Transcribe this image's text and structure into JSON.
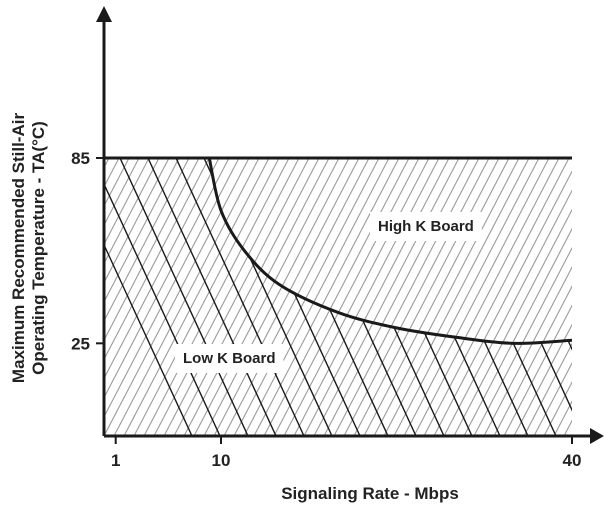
{
  "chart_data": {
    "type": "area",
    "xlabel": "Signaling Rate - Mbps",
    "ylabel_line1": "Maximum Recommended Still-Air",
    "ylabel_line2": "Operating Temperature  - TA(°C)",
    "x_ticks": [
      {
        "value": 1,
        "label": "1"
      },
      {
        "value": 10,
        "label": "10"
      },
      {
        "value": 40,
        "label": "40"
      }
    ],
    "y_ticks": [
      {
        "value": 25,
        "label": "25"
      },
      {
        "value": 85,
        "label": "85"
      }
    ],
    "xlim": [
      0,
      40
    ],
    "ylim": [
      -5,
      85
    ],
    "series": [
      {
        "name": "High K Board",
        "points": [
          [
            9,
            85
          ],
          [
            10,
            68
          ],
          [
            12,
            55
          ],
          [
            15,
            44
          ],
          [
            20,
            35
          ],
          [
            25,
            30
          ],
          [
            30,
            27
          ],
          [
            35,
            25
          ],
          [
            40,
            26
          ]
        ]
      },
      {
        "name": "Low K Board",
        "points": [
          [
            0,
            85
          ],
          [
            40,
            85
          ]
        ]
      }
    ],
    "regions": [
      {
        "name": "High K Board",
        "label": "High K Board"
      },
      {
        "name": "Low K Board",
        "label": "Low K Board"
      }
    ],
    "colors": {
      "line": "#1a1a1a",
      "hatch_fine": "#9a9a9a",
      "hatch_coarse": "#1a1a1a"
    }
  }
}
